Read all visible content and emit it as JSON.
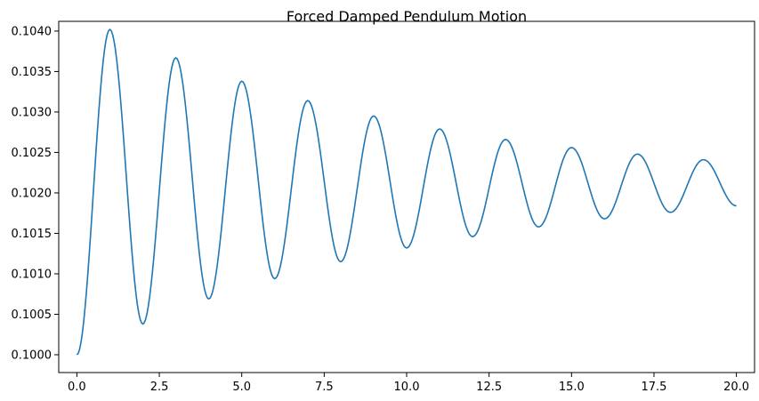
{
  "chart_data": {
    "type": "line",
    "title": "Forced Damped Pendulum Motion",
    "xlabel": "",
    "ylabel": "",
    "xlim": [
      -0.55,
      20.55
    ],
    "ylim": [
      0.09978,
      0.10412
    ],
    "xticks": [
      0.0,
      2.5,
      5.0,
      7.5,
      10.0,
      12.5,
      15.0,
      17.5,
      20.0
    ],
    "xtick_labels": [
      "0.0",
      "2.5",
      "5.0",
      "7.5",
      "10.0",
      "12.5",
      "15.0",
      "17.5",
      "20.0"
    ],
    "yticks": [
      0.1,
      0.1005,
      0.101,
      0.1015,
      0.102,
      0.1025,
      0.103,
      0.1035,
      0.104
    ],
    "ytick_labels": [
      "0.1000",
      "0.1005",
      "0.1010",
      "0.1015",
      "0.1020",
      "0.1025",
      "0.1030",
      "0.1035",
      "0.1040"
    ],
    "grid": false,
    "line_color": "#1f77b4",
    "series": [
      {
        "x": [
          0.0,
          1.0,
          2.0,
          3.0,
          4.0,
          5.0,
          6.0,
          7.0,
          8.0,
          9.0,
          10.0,
          11.0,
          12.0,
          13.0,
          14.0,
          15.0,
          16.0,
          17.0,
          18.0,
          19.0,
          20.0
        ],
        "y": [
          0.1,
          0.10402,
          0.10038,
          0.10367,
          0.10069,
          0.10338,
          0.10094,
          0.10314,
          0.10115,
          0.10295,
          0.10132,
          0.10279,
          0.10146,
          0.10266,
          0.10158,
          0.10256,
          0.10168,
          0.10248,
          0.10176,
          0.10241,
          0.10184
        ]
      }
    ]
  }
}
